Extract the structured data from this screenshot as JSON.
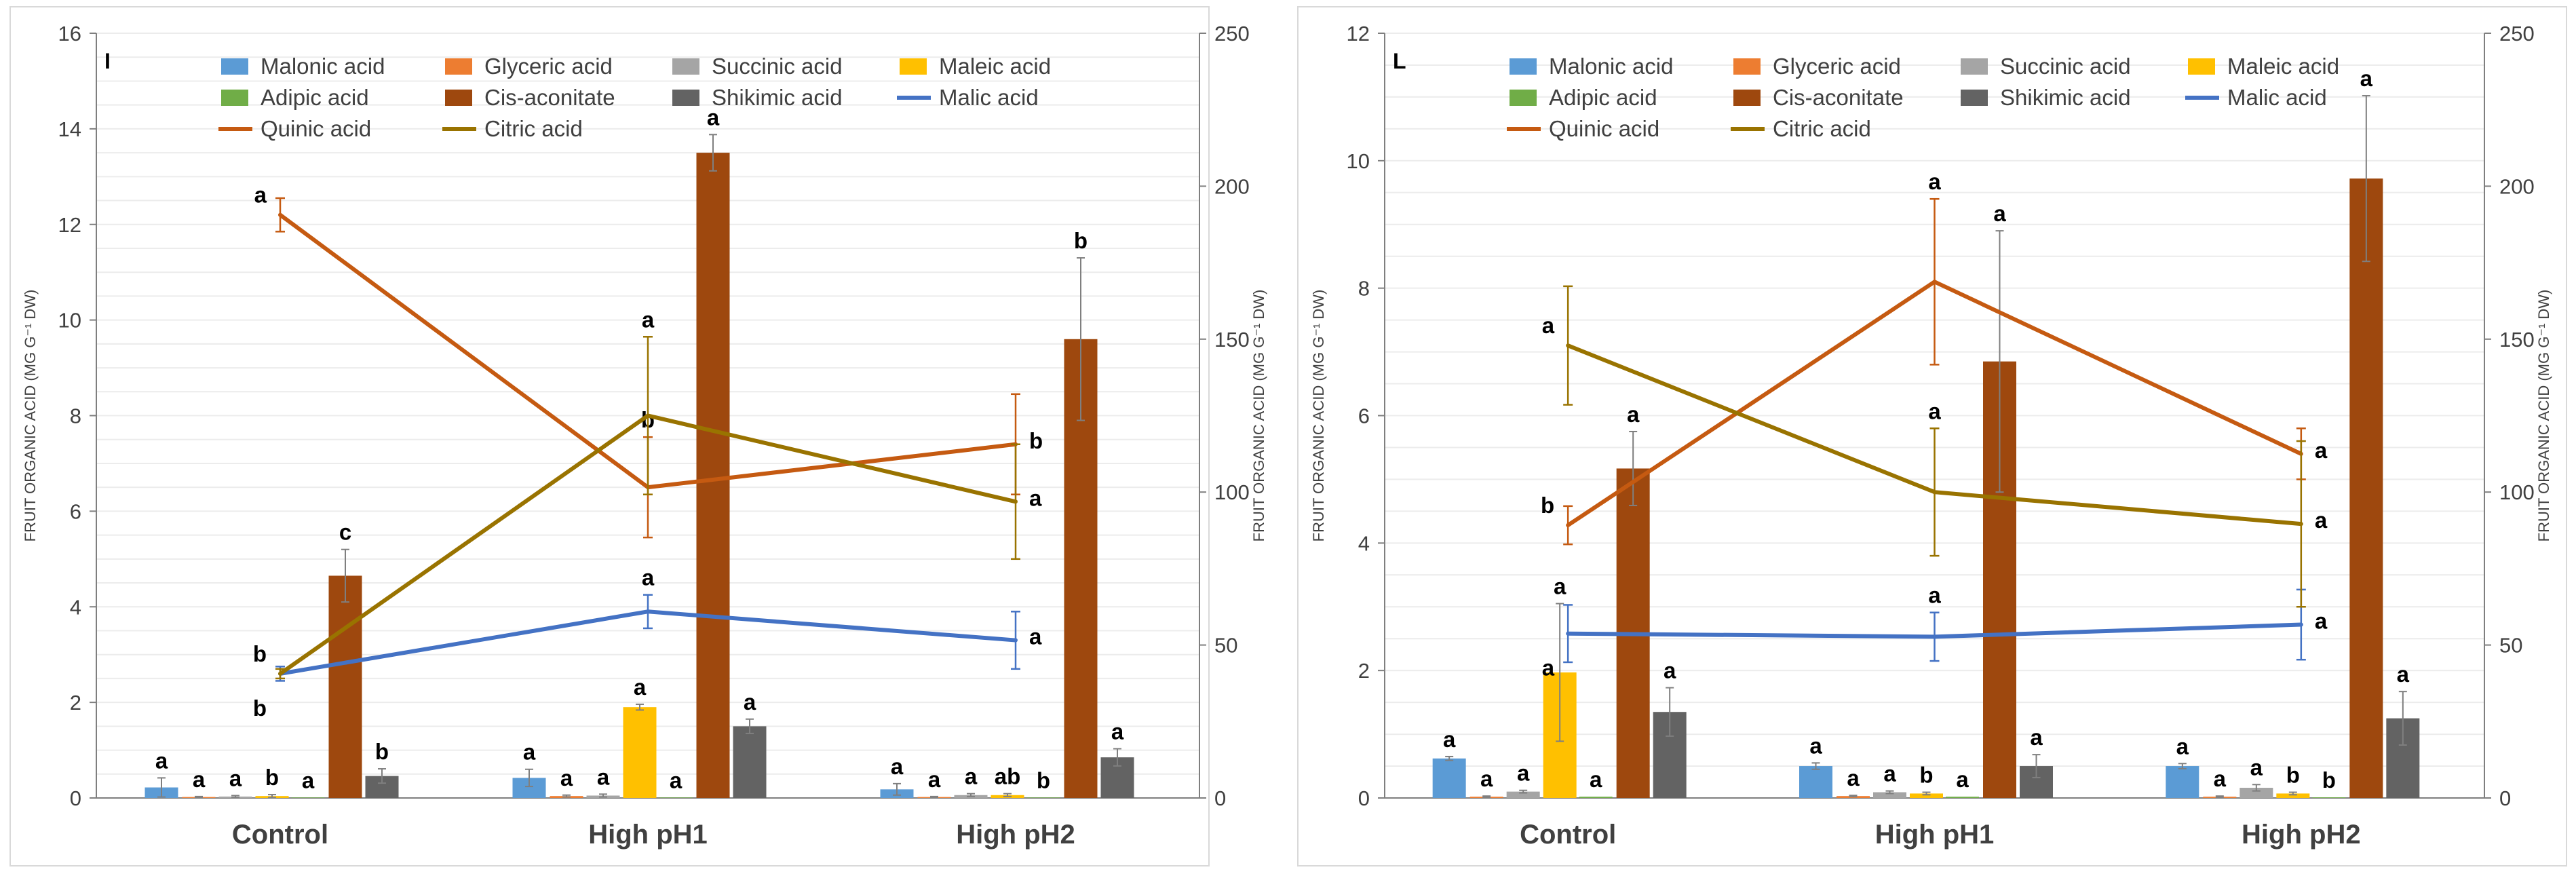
{
  "colors": {
    "Malonic acid": "#5b9bd5",
    "Glyceric acid": "#ed7d31",
    "Succinic acid": "#a5a5a5",
    "Maleic acid": "#ffc000",
    "Adipic acid": "#70ad47",
    "Cis-aconitate": "#9e480e",
    "Shikimic acid": "#636363",
    "Malic acid": "#4472c4",
    "Quinic acid": "#c55a11",
    "Citric acid": "#997300"
  },
  "chart_data": [
    {
      "type": "bar",
      "panel_label": "I",
      "ylabel": "FRUIT ORGANIC ACID  (MG G⁻¹ DW)",
      "ylabel_right": "FRUIT ORGANIC ACID (MG G⁻¹ DW)",
      "ylim": [
        0,
        16
      ],
      "yticks": [
        "0",
        "2",
        "4",
        "6",
        "8",
        "10",
        "12",
        "14",
        "16"
      ],
      "ylim_right": [
        0,
        250
      ],
      "yticks_right": [
        "0",
        "50",
        "100",
        "150",
        "200",
        "250"
      ],
      "categories": [
        "Control",
        "High pH1",
        "High pH2"
      ],
      "legend": {
        "row1": [
          "Malonic acid",
          "Glyceric acid",
          "Succinic acid",
          "Maleic acid"
        ],
        "row2": [
          "Adipic acid",
          "Cis-aconitate",
          "Shikimic acid",
          "Malic acid"
        ],
        "row3": [
          "Quinic acid",
          "Citric acid"
        ]
      },
      "bar_series": [
        {
          "name": "Malonic acid",
          "values": [
            0.22,
            0.42,
            0.18
          ],
          "errors": [
            0.2,
            0.18,
            0.12
          ],
          "letters": [
            "a",
            "a",
            "a"
          ]
        },
        {
          "name": "Glyceric acid",
          "values": [
            0.02,
            0.04,
            0.02
          ],
          "errors": [
            0.01,
            0.02,
            0.01
          ],
          "letters": [
            "a",
            "a",
            "a"
          ]
        },
        {
          "name": "Succinic acid",
          "values": [
            0.03,
            0.05,
            0.06
          ],
          "errors": [
            0.02,
            0.03,
            0.03
          ],
          "letters": [
            "a",
            "a",
            "a"
          ]
        },
        {
          "name": "Maleic acid",
          "values": [
            0.04,
            1.9,
            0.06
          ],
          "errors": [
            0.03,
            0.06,
            0.03
          ],
          "letters": [
            "b",
            "a",
            "ab"
          ]
        },
        {
          "name": "Adipic acid",
          "values": [
            0.01,
            0.01,
            0.01
          ],
          "errors": [
            0,
            0,
            0
          ],
          "letters": [
            "a",
            "a",
            "b"
          ]
        },
        {
          "name": "Cis-aconitate",
          "values": [
            4.65,
            13.5,
            9.6
          ],
          "errors": [
            0.55,
            0.38,
            1.7
          ],
          "letters": [
            "c",
            "a",
            "b"
          ]
        },
        {
          "name": "Shikimic acid",
          "values": [
            0.46,
            1.5,
            0.85
          ],
          "errors": [
            0.15,
            0.15,
            0.18
          ],
          "letters": [
            "b",
            "a",
            "a"
          ]
        }
      ],
      "line_series": [
        {
          "name": "Malic acid",
          "axis": "left",
          "values": [
            2.6,
            3.9,
            3.3
          ],
          "errors": [
            0.15,
            0.35,
            0.6
          ],
          "letters": [
            "b",
            "a",
            "a"
          ]
        },
        {
          "name": "Quinic acid",
          "axis": "left",
          "values": [
            12.2,
            6.5,
            7.4
          ],
          "errors": [
            0.35,
            1.05,
            1.05
          ],
          "letters": [
            "a",
            "b",
            "b"
          ]
        },
        {
          "name": "Citric acid",
          "axis": "left",
          "values": [
            2.6,
            8.0,
            6.2
          ],
          "errors": [
            0.1,
            1.65,
            1.2
          ],
          "letters": [
            "b",
            "a",
            "a"
          ]
        }
      ]
    },
    {
      "type": "bar",
      "panel_label": "L",
      "ylabel": "FRUIT ORGANIC ACID  (MG G⁻¹ DW)",
      "ylabel_right": "FRUIT ORGANIC ACID (MG G⁻¹ DW)",
      "ylim": [
        0,
        12
      ],
      "yticks": [
        "0",
        "2",
        "4",
        "6",
        "8",
        "10",
        "12"
      ],
      "ylim_right": [
        0,
        250
      ],
      "yticks_right": [
        "0",
        "50",
        "100",
        "150",
        "200",
        "250"
      ],
      "categories": [
        "Control",
        "High pH1",
        "High pH2"
      ],
      "legend": {
        "row1": [
          "Malonic acid",
          "Glyceric acid",
          "Succinic acid",
          "Maleic acid"
        ],
        "row2": [
          "Adipic acid",
          "Cis-aconitate",
          "Shikimic acid",
          "Malic acid"
        ],
        "row3": [
          "Quinic acid",
          "Citric acid"
        ]
      },
      "bar_series": [
        {
          "name": "Malonic acid",
          "values": [
            0.62,
            0.5,
            0.5
          ],
          "errors": [
            0.03,
            0.05,
            0.04
          ],
          "letters": [
            "a",
            "a",
            "a"
          ]
        },
        {
          "name": "Glyceric acid",
          "values": [
            0.02,
            0.03,
            0.02
          ],
          "errors": [
            0.01,
            0.01,
            0.01
          ],
          "letters": [
            "a",
            "a",
            "a"
          ]
        },
        {
          "name": "Succinic acid",
          "values": [
            0.1,
            0.09,
            0.16
          ],
          "errors": [
            0.02,
            0.02,
            0.05
          ],
          "letters": [
            "a",
            "a",
            "a"
          ]
        },
        {
          "name": "Maleic acid",
          "values": [
            1.97,
            0.07,
            0.07
          ],
          "errors": [
            1.08,
            0.02,
            0.02
          ],
          "letters": [
            "a",
            "b",
            "b"
          ]
        },
        {
          "name": "Adipic acid",
          "values": [
            0.02,
            0.02,
            0.01
          ],
          "errors": [
            0,
            0,
            0
          ],
          "letters": [
            "a",
            "a",
            "b"
          ]
        },
        {
          "name": "Cis-aconitate",
          "values": [
            5.17,
            6.85,
            9.72
          ],
          "errors": [
            0.58,
            2.05,
            1.3
          ],
          "letters": [
            "a",
            "a",
            "a"
          ]
        },
        {
          "name": "Shikimic acid",
          "values": [
            1.35,
            0.5,
            1.25
          ],
          "errors": [
            0.38,
            0.18,
            0.42
          ],
          "letters": [
            "a",
            "a",
            "a"
          ]
        }
      ],
      "line_series": [
        {
          "name": "Malic acid",
          "axis": "left",
          "values": [
            2.58,
            2.53,
            2.72
          ],
          "errors": [
            0.45,
            0.38,
            0.55
          ],
          "letters": [
            "a",
            "a",
            "a"
          ]
        },
        {
          "name": "Quinic acid",
          "axis": "left",
          "values": [
            4.28,
            8.1,
            5.4
          ],
          "errors": [
            0.3,
            1.3,
            0.4
          ],
          "letters": [
            "b",
            "a",
            "a"
          ]
        },
        {
          "name": "Citric acid",
          "axis": "left",
          "values": [
            7.1,
            4.8,
            4.3
          ],
          "errors": [
            0.93,
            1.0,
            1.3
          ],
          "letters": [
            "a",
            "a",
            "a"
          ]
        }
      ]
    }
  ]
}
